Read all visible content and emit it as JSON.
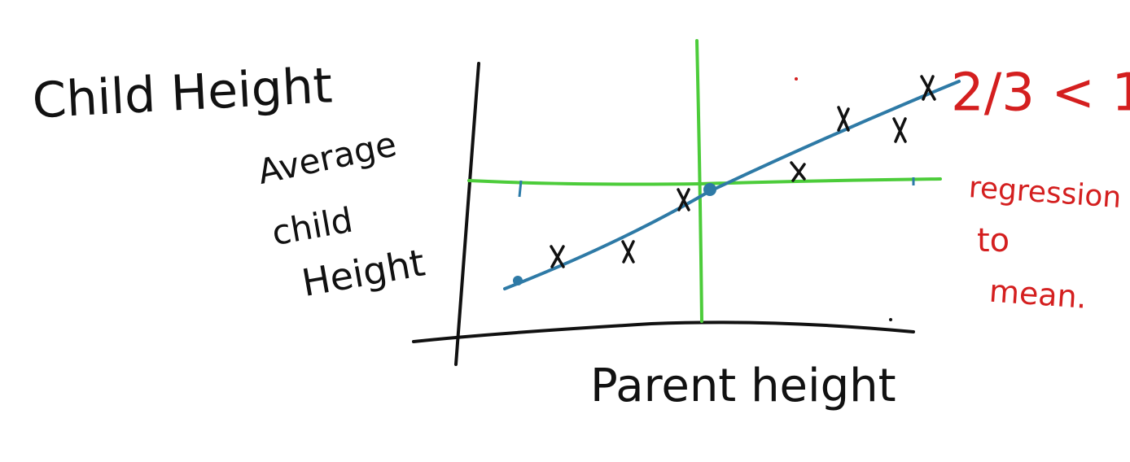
{
  "labels": {
    "left_title": "Child Height",
    "y_axis": [
      "Average",
      "child",
      "Height"
    ],
    "x_axis": "Parent height",
    "ratio": "2/3 < 1",
    "note": [
      "regression",
      "to",
      "mean."
    ]
  }
}
